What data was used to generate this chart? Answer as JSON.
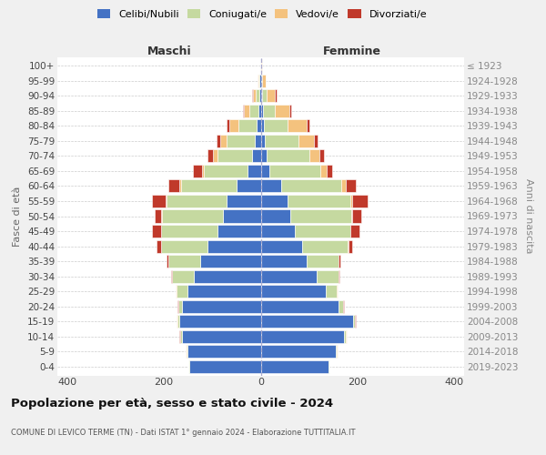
{
  "age_groups": [
    "0-4",
    "5-9",
    "10-14",
    "15-19",
    "20-24",
    "25-29",
    "30-34",
    "35-39",
    "40-44",
    "45-49",
    "50-54",
    "55-59",
    "60-64",
    "65-69",
    "70-74",
    "75-79",
    "80-84",
    "85-89",
    "90-94",
    "95-99",
    "100+"
  ],
  "birth_years": [
    "2019-2023",
    "2014-2018",
    "2009-2013",
    "2004-2008",
    "1999-2003",
    "1994-1998",
    "1989-1993",
    "1984-1988",
    "1979-1983",
    "1974-1978",
    "1969-1973",
    "1964-1968",
    "1959-1963",
    "1954-1958",
    "1949-1953",
    "1944-1948",
    "1939-1943",
    "1934-1938",
    "1929-1933",
    "1924-1928",
    "≤ 1923"
  ],
  "colors": {
    "celibi": "#4472c4",
    "coniugati": "#c5d9a0",
    "vedovi": "#f4c27e",
    "divorziati": "#c0392b"
  },
  "males": {
    "celibi": [
      148,
      152,
      162,
      168,
      162,
      152,
      138,
      125,
      110,
      90,
      78,
      70,
      50,
      28,
      18,
      12,
      8,
      5,
      3,
      2,
      1
    ],
    "coniugati": [
      1,
      2,
      4,
      4,
      8,
      22,
      45,
      65,
      95,
      115,
      125,
      125,
      115,
      90,
      72,
      58,
      38,
      18,
      7,
      2,
      0
    ],
    "vedovi": [
      0,
      1,
      1,
      1,
      1,
      1,
      1,
      1,
      1,
      1,
      2,
      2,
      4,
      4,
      8,
      13,
      18,
      12,
      6,
      2,
      0
    ],
    "divorziati": [
      0,
      0,
      1,
      1,
      1,
      1,
      2,
      4,
      10,
      18,
      14,
      28,
      22,
      18,
      11,
      9,
      7,
      2,
      1,
      0,
      0
    ]
  },
  "females": {
    "celibi": [
      140,
      155,
      172,
      190,
      160,
      135,
      115,
      95,
      85,
      70,
      62,
      55,
      42,
      18,
      12,
      8,
      6,
      4,
      2,
      1,
      1
    ],
    "coniugati": [
      1,
      2,
      4,
      4,
      10,
      22,
      45,
      65,
      95,
      115,
      125,
      130,
      125,
      105,
      88,
      70,
      50,
      25,
      10,
      2,
      0
    ],
    "vedovi": [
      0,
      1,
      1,
      1,
      1,
      1,
      1,
      1,
      1,
      1,
      2,
      4,
      8,
      13,
      22,
      32,
      38,
      30,
      18,
      7,
      2
    ],
    "divorziati": [
      0,
      0,
      1,
      1,
      1,
      1,
      2,
      4,
      8,
      18,
      18,
      32,
      22,
      11,
      9,
      7,
      7,
      4,
      2,
      1,
      0
    ]
  },
  "xlim": 420,
  "xticks": [
    -400,
    -200,
    0,
    200,
    400
  ],
  "title": "Popolazione per età, sesso e stato civile - 2024",
  "subtitle": "COMUNE DI LEVICO TERME (TN) - Dati ISTAT 1° gennaio 2024 - Elaborazione TUTTITALIA.IT",
  "ylabel": "Fasce di età",
  "ylabel_right": "Anni di nascita",
  "legend_labels": [
    "Celibi/Nubili",
    "Coniugati/e",
    "Vedovi/e",
    "Divorziati/e"
  ],
  "maschi_label": "Maschi",
  "femmine_label": "Femmine",
  "bg_color": "#f0f0f0",
  "plot_bg": "#ffffff",
  "grid_color": "#cccccc",
  "center_line_color": "#aaaacc"
}
